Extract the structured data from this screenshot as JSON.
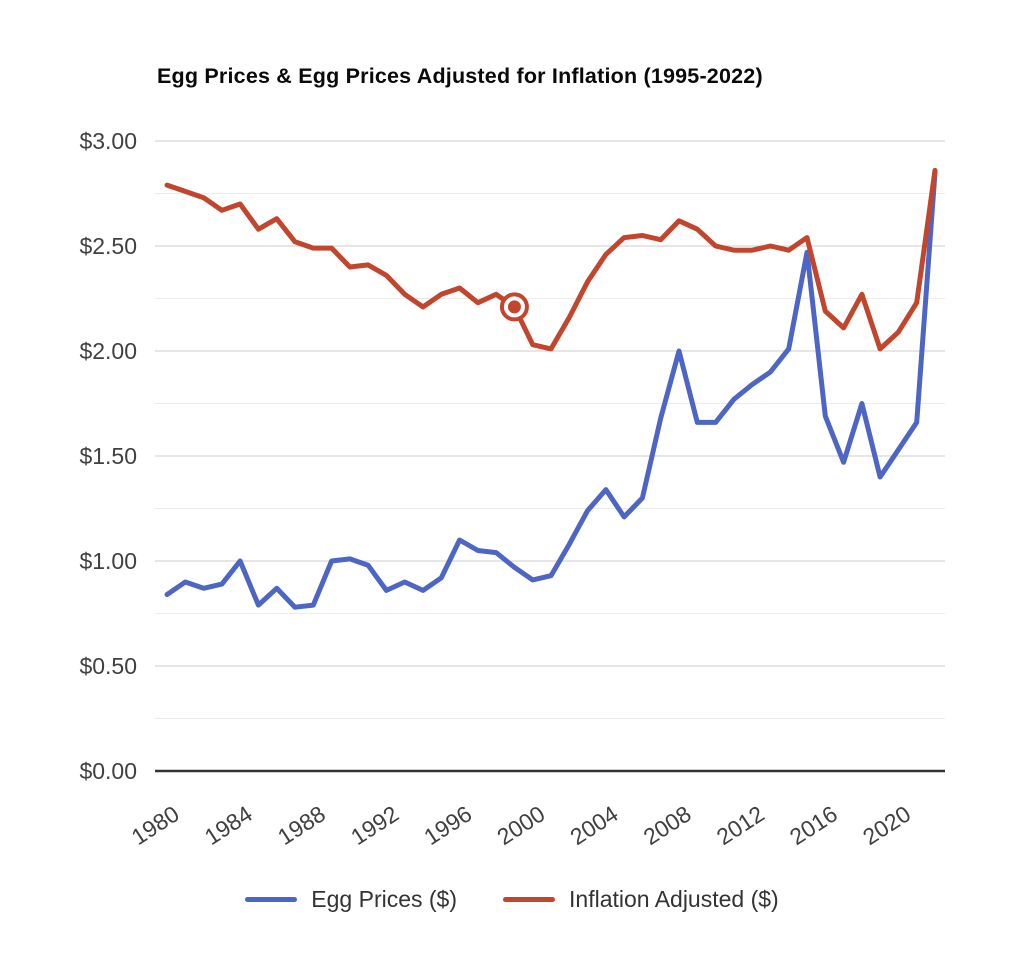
{
  "title": "Egg Prices & Egg Prices Adjusted for Inflation (1995-2022)",
  "chart_data": {
    "type": "line",
    "title": "Egg Prices & Egg Prices Adjusted for Inflation (1995-2022)",
    "x": [
      1980,
      1981,
      1982,
      1983,
      1984,
      1985,
      1986,
      1987,
      1988,
      1989,
      1990,
      1991,
      1992,
      1993,
      1994,
      1995,
      1996,
      1997,
      1998,
      1999,
      2000,
      2001,
      2002,
      2003,
      2004,
      2005,
      2006,
      2007,
      2008,
      2009,
      2010,
      2011,
      2012,
      2013,
      2014,
      2015,
      2016,
      2017,
      2018,
      2019,
      2020,
      2021,
      2022
    ],
    "series": [
      {
        "name": "Egg Prices ($)",
        "color": "#4d65c5",
        "values": [
          0.84,
          0.9,
          0.87,
          0.89,
          1.0,
          0.79,
          0.87,
          0.78,
          0.79,
          1.0,
          1.01,
          0.98,
          0.86,
          0.9,
          0.86,
          0.92,
          1.1,
          1.05,
          1.04,
          0.97,
          0.91,
          0.93,
          1.08,
          1.24,
          1.34,
          1.21,
          1.3,
          1.68,
          2.0,
          1.66,
          1.66,
          1.77,
          1.84,
          1.9,
          2.01,
          2.47,
          1.69,
          1.47,
          1.75,
          1.4,
          1.53,
          1.66,
          2.85
        ]
      },
      {
        "name": "Inflation Adjusted ($)",
        "color": "#c2462d",
        "values": [
          2.79,
          2.76,
          2.73,
          2.67,
          2.7,
          2.58,
          2.63,
          2.52,
          2.49,
          2.49,
          2.4,
          2.41,
          2.36,
          2.27,
          2.21,
          2.27,
          2.3,
          2.23,
          2.27,
          2.21,
          2.03,
          2.01,
          2.16,
          2.33,
          2.46,
          2.54,
          2.55,
          2.53,
          2.62,
          2.58,
          2.5,
          2.48,
          2.48,
          2.5,
          2.48,
          2.54,
          2.19,
          2.11,
          2.27,
          2.01,
          2.09,
          2.23,
          2.86
        ],
        "highlight_point": {
          "x": 1999,
          "value": 2.21
        }
      }
    ],
    "xlabel": "",
    "ylabel": "",
    "ylim": [
      0,
      3
    ],
    "x_ticks": [
      {
        "value": 1980,
        "label": "1980"
      },
      {
        "value": 1984,
        "label": "1984"
      },
      {
        "value": 1988,
        "label": "1988"
      },
      {
        "value": 1992,
        "label": "1992"
      },
      {
        "value": 1996,
        "label": "1996"
      },
      {
        "value": 2000,
        "label": "2000"
      },
      {
        "value": 2004,
        "label": "2004"
      },
      {
        "value": 2008,
        "label": "2008"
      },
      {
        "value": 2012,
        "label": "2012"
      },
      {
        "value": 2016,
        "label": "2016"
      },
      {
        "value": 2020,
        "label": "2020"
      }
    ],
    "y_ticks": [
      {
        "value": 3.0,
        "label": "$3.00"
      },
      {
        "value": 2.5,
        "label": "$2.50"
      },
      {
        "value": 2.0,
        "label": "$2.00"
      },
      {
        "value": 1.5,
        "label": "$1.50"
      },
      {
        "value": 1.0,
        "label": "$1.00"
      },
      {
        "value": 0.5,
        "label": "$0.50"
      },
      {
        "value": 0.0,
        "label": "$0.00"
      }
    ],
    "grid": {
      "major_step": 0.5,
      "minor_step": 0.25,
      "major_color": "#cccccc",
      "minor_color": "#ececec",
      "axis_color": "#333333"
    },
    "label_color": "#404040",
    "legend_position": "bottom"
  }
}
